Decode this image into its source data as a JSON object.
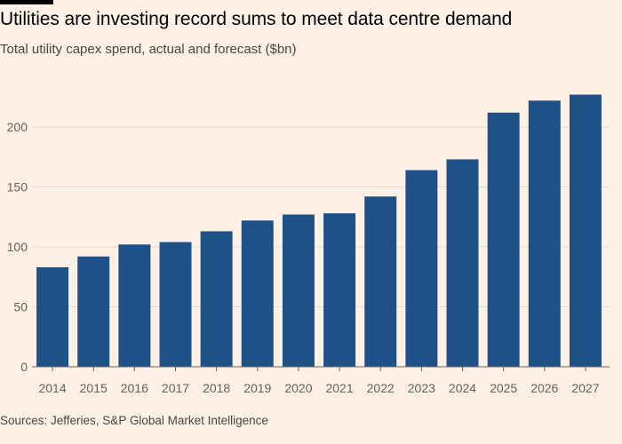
{
  "header": {
    "title": "Utilities are investing record sums to meet data centre demand",
    "subtitle": "Total utility capex spend, actual and forecast ($bn)"
  },
  "footer": {
    "source": "Sources: Jefferies, S&P Global Market Intelligence"
  },
  "colors": {
    "bar": "#1f5189",
    "grid": "#e6d9ce",
    "axis": "#66605c",
    "background": "#fff1e5"
  },
  "chart_data": {
    "type": "bar",
    "title": "Utilities are investing record sums to meet data centre demand",
    "subtitle": "Total utility capex spend, actual and forecast ($bn)",
    "xlabel": "",
    "ylabel": "",
    "categories": [
      "2014",
      "2015",
      "2016",
      "2017",
      "2018",
      "2019",
      "2020",
      "2021",
      "2022",
      "2023",
      "2024",
      "2025",
      "2026",
      "2027"
    ],
    "values": [
      83,
      92,
      102,
      104,
      113,
      122,
      127,
      128,
      142,
      164,
      173,
      212,
      222,
      227
    ],
    "ylim": [
      0,
      230
    ],
    "yticks": [
      0,
      50,
      100,
      150,
      200
    ],
    "grid": true,
    "legend": "none"
  }
}
